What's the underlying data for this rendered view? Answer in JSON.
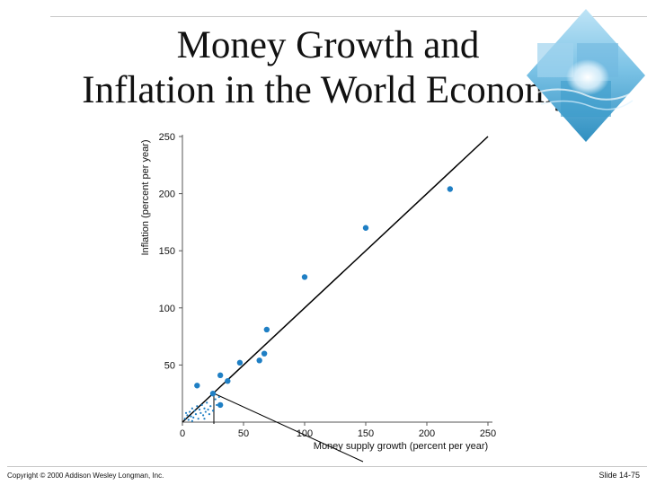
{
  "slide": {
    "title_line1": "Money Growth and",
    "title_line2": "Inflation in the World Economy",
    "copyright": "Copyright © 2000 Addison Wesley Longman, Inc.",
    "slide_number": "Slide 14-75"
  },
  "colors": {
    "points": "#1f7fc4",
    "line": "#000000",
    "axes": "#555555",
    "text": "#111111"
  },
  "decor": {
    "icon": "ocean-wave-photo-icon"
  },
  "chart_data": {
    "type": "scatter",
    "title": "",
    "xlabel": "Money supply growth (percent per year)",
    "ylabel": "Inflation (percent per year)",
    "xlim": [
      0,
      250
    ],
    "ylim": [
      0,
      250
    ],
    "xticks": [
      0,
      50,
      100,
      150,
      200,
      250
    ],
    "yticks": [
      50,
      100,
      150,
      200,
      250
    ],
    "grid": false,
    "legend": "none",
    "reference_line": {
      "x": [
        0,
        250
      ],
      "y": [
        0,
        250
      ]
    },
    "points": [
      {
        "x": 12,
        "y": 32
      },
      {
        "x": 25,
        "y": 25
      },
      {
        "x": 31,
        "y": 41
      },
      {
        "x": 31,
        "y": 15
      },
      {
        "x": 37,
        "y": 36
      },
      {
        "x": 47,
        "y": 52
      },
      {
        "x": 63,
        "y": 54
      },
      {
        "x": 67,
        "y": 60
      },
      {
        "x": 69,
        "y": 81
      },
      {
        "x": 100,
        "y": 127
      },
      {
        "x": 150,
        "y": 170
      },
      {
        "x": 219,
        "y": 204
      }
    ],
    "small_points": [
      {
        "x": 2,
        "y": 3
      },
      {
        "x": 4,
        "y": 6
      },
      {
        "x": 5,
        "y": 2
      },
      {
        "x": 6,
        "y": 9
      },
      {
        "x": 7,
        "y": 5
      },
      {
        "x": 8,
        "y": 12
      },
      {
        "x": 9,
        "y": 4
      },
      {
        "x": 10,
        "y": 10
      },
      {
        "x": 11,
        "y": 7
      },
      {
        "x": 12,
        "y": 14
      },
      {
        "x": 13,
        "y": 3
      },
      {
        "x": 14,
        "y": 11
      },
      {
        "x": 15,
        "y": 8
      },
      {
        "x": 16,
        "y": 15
      },
      {
        "x": 17,
        "y": 6
      },
      {
        "x": 18,
        "y": 12
      },
      {
        "x": 19,
        "y": 9
      },
      {
        "x": 20,
        "y": 17
      },
      {
        "x": 21,
        "y": 11
      },
      {
        "x": 22,
        "y": 7
      },
      {
        "x": 23,
        "y": 14
      },
      {
        "x": 25,
        "y": 10
      },
      {
        "x": 27,
        "y": 20
      },
      {
        "x": 28,
        "y": 15
      },
      {
        "x": 30,
        "y": 22
      },
      {
        "x": 8,
        "y": 1
      },
      {
        "x": 3,
        "y": 8
      },
      {
        "x": 18,
        "y": 3
      }
    ]
  }
}
